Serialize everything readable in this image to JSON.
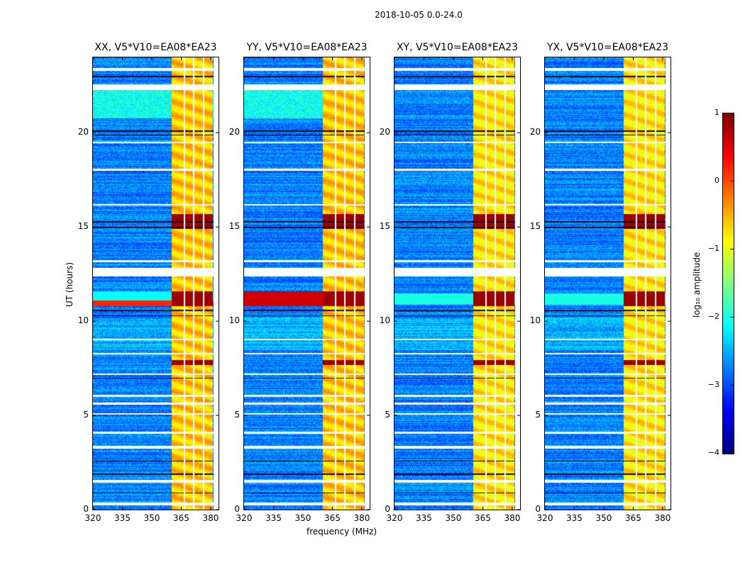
{
  "chart_data": {
    "type": "heatmap",
    "title": "2018-10-05 0.0-24.0",
    "xlabel": "frequency (MHz)",
    "ylabel": "UT (hours)",
    "xlim": [
      320,
      384
    ],
    "ylim": [
      0,
      24
    ],
    "xticks": [
      "320",
      "335",
      "350",
      "365",
      "380"
    ],
    "yticks": [
      "0",
      "5",
      "10",
      "15",
      "20"
    ],
    "panels": [
      {
        "title": "XX, V5*V10=EA08*EA23"
      },
      {
        "title": "YY, V5*V10=EA08*EA23"
      },
      {
        "title": "XY, V5*V10=EA08*EA23"
      },
      {
        "title": "YX, V5*V10=EA08*EA23"
      }
    ],
    "colorbar": {
      "label": "log₁₀ amplitude",
      "range": [
        -4,
        1
      ],
      "ticks": [
        "1",
        "0",
        "−1",
        "−2",
        "−3",
        "−4"
      ],
      "colormap": "jet"
    },
    "features": {
      "rfi_band_mhz": [
        360,
        381
      ],
      "background_log_amp": -2.7,
      "rfi_log_amp": -0.6,
      "strong_events_hours": [
        [
          10.8,
          11.6
        ],
        [
          14.9,
          15.7
        ],
        [
          7.7,
          7.95
        ]
      ],
      "flagged_rows_hours": [
        [
          0.25,
          0.4
        ],
        [
          1.45,
          1.6
        ],
        [
          3.25,
          3.4
        ],
        [
          4.05,
          4.15
        ],
        [
          5.05,
          5.15
        ],
        [
          5.6,
          5.7
        ],
        [
          6.0,
          6.1
        ],
        [
          7.15,
          7.25
        ],
        [
          8.25,
          8.35
        ],
        [
          9.0,
          9.1
        ],
        [
          12.4,
          12.85
        ],
        [
          13.15,
          13.25
        ],
        [
          16.15,
          16.25
        ],
        [
          18.0,
          18.1
        ],
        [
          19.45,
          19.55
        ],
        [
          22.3,
          22.6
        ],
        [
          23.3,
          23.45
        ]
      ],
      "dead_rows_hours": [
        0.9,
        1.9,
        2.6,
        7.0,
        10.3,
        10.6,
        15.0,
        15.3,
        19.9,
        20.1,
        23.0
      ]
    }
  }
}
